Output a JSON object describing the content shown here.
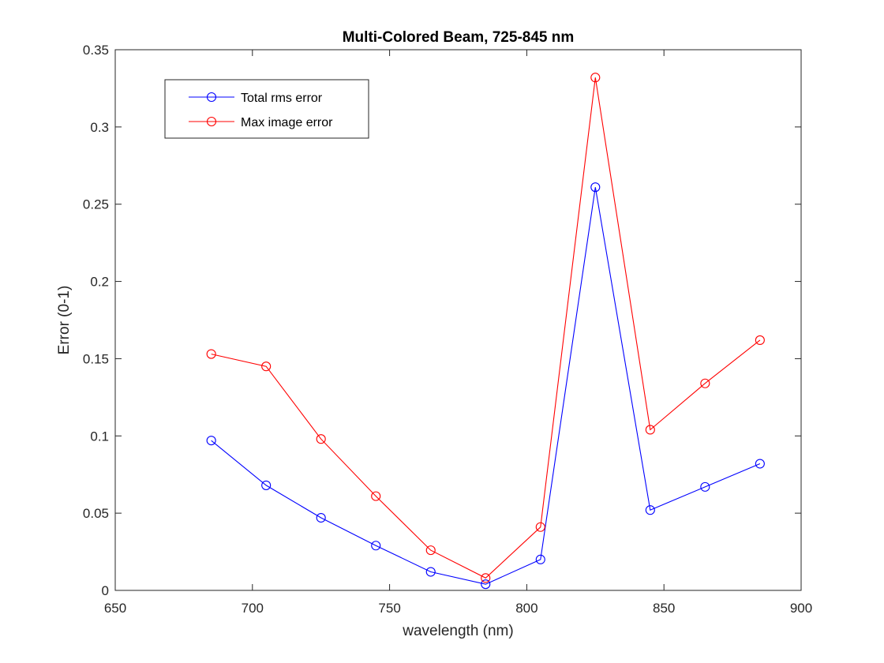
{
  "chart_data": {
    "type": "line",
    "title": "Multi-Colored Beam, 725-845 nm",
    "xlabel": "wavelength (nm)",
    "ylabel": "Error (0-1)",
    "xlim": [
      650,
      900
    ],
    "ylim": [
      0,
      0.35
    ],
    "xticks": [
      650,
      700,
      750,
      800,
      850,
      900
    ],
    "xtick_labels": [
      "650",
      "700",
      "750",
      "800",
      "850",
      "900"
    ],
    "yticks": [
      0,
      0.05,
      0.1,
      0.15,
      0.2,
      0.25,
      0.3,
      0.35
    ],
    "ytick_labels": [
      "0",
      "0.05",
      "0.1",
      "0.15",
      "0.2",
      "0.25",
      "0.3",
      "0.35"
    ],
    "grid": false,
    "legend_position": "top-left",
    "x": [
      685,
      705,
      725,
      745,
      765,
      785,
      805,
      825,
      845,
      865,
      885
    ],
    "series": [
      {
        "name": "Total rms error",
        "color": "#0000ff",
        "marker": "circle",
        "values": [
          0.097,
          0.068,
          0.047,
          0.029,
          0.012,
          0.004,
          0.02,
          0.261,
          0.052,
          0.067,
          0.082
        ]
      },
      {
        "name": "Max image error",
        "color": "#ff0000",
        "marker": "circle",
        "values": [
          0.153,
          0.145,
          0.098,
          0.061,
          0.026,
          0.008,
          0.041,
          0.332,
          0.104,
          0.134,
          0.162
        ]
      }
    ]
  }
}
